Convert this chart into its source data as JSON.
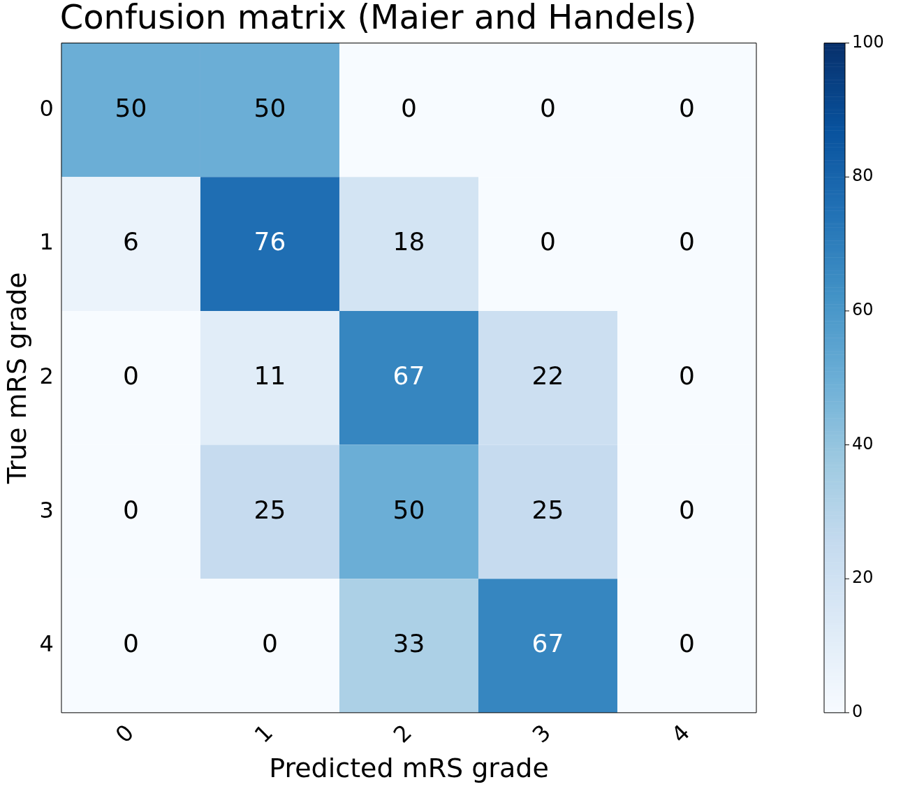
{
  "chart_data": {
    "type": "heatmap",
    "title": "Confusion matrix (Maier and Handels)",
    "xlabel": "Predicted mRS grade",
    "ylabel": "True mRS grade",
    "categories": [
      "0",
      "1",
      "2",
      "3",
      "4"
    ],
    "y_categories": [
      "0",
      "1",
      "2",
      "3",
      "4"
    ],
    "cells": [
      [
        50,
        50,
        0,
        0,
        0
      ],
      [
        6,
        76,
        18,
        0,
        0
      ],
      [
        0,
        11,
        67,
        22,
        0
      ],
      [
        0,
        25,
        50,
        25,
        0
      ],
      [
        0,
        0,
        33,
        67,
        0
      ]
    ],
    "data_labels": true,
    "clim": [
      0,
      100
    ],
    "cticks": [
      0,
      20,
      40,
      60,
      80,
      100
    ]
  }
}
